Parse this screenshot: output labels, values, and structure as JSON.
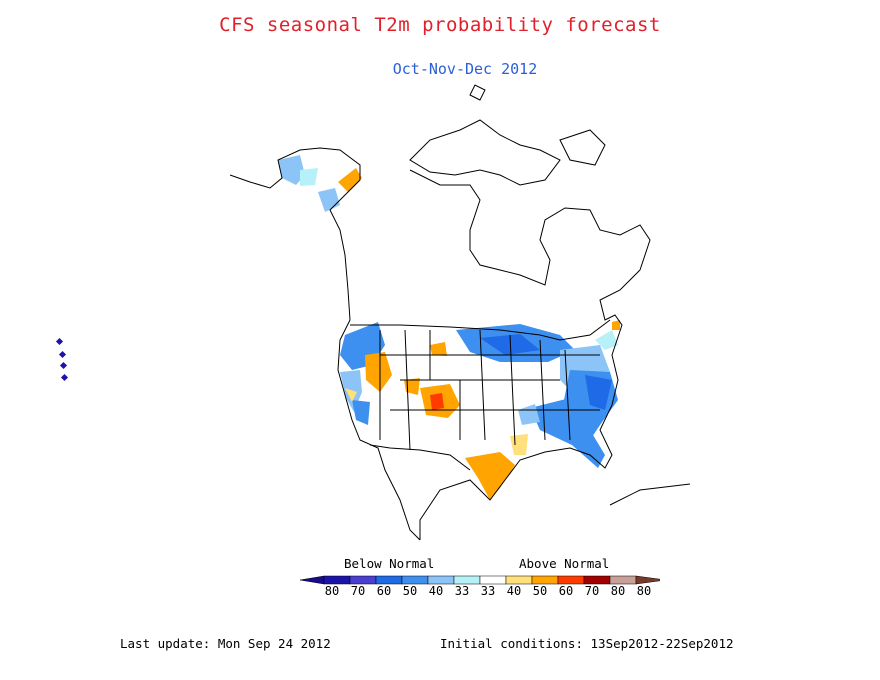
{
  "header": {
    "title": "CFS seasonal T2m probability forecast",
    "subtitle": "Oct-Nov-Dec 2012",
    "title_color": "#e0202a",
    "subtitle_color": "#2a5fd8"
  },
  "legend": {
    "below_label": "Below Normal",
    "above_label": "Above Normal",
    "bins": [
      {
        "label": "80",
        "color": "#1c14a8"
      },
      {
        "label": "70",
        "color": "#4a3fd0"
      },
      {
        "label": "60",
        "color": "#1f6ae6"
      },
      {
        "label": "50",
        "color": "#3d8ff0"
      },
      {
        "label": "40",
        "color": "#8cc4f8"
      },
      {
        "label": "33",
        "color": "#b6f0f8"
      },
      {
        "label": "33",
        "color": "#ffffff"
      },
      {
        "label": "40",
        "color": "#ffe07a"
      },
      {
        "label": "50",
        "color": "#ffa400"
      },
      {
        "label": "60",
        "color": "#ff3b00"
      },
      {
        "label": "70",
        "color": "#a30000"
      },
      {
        "label": "80",
        "color": "#c8a098"
      }
    ],
    "end_low_color": "#180a90",
    "end_high_color": "#7a3a2a"
  },
  "footer": {
    "last_update": "Last update: Mon Sep 24 2012",
    "initial_conditions": "Initial conditions: 13Sep2012-22Sep2012"
  }
}
